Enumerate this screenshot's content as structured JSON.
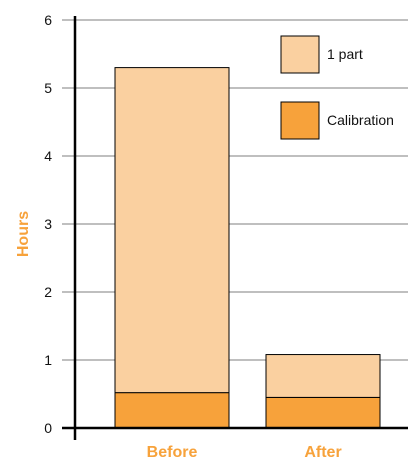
{
  "chart_data": {
    "type": "bar",
    "stacked": true,
    "categories": [
      "Before",
      "After"
    ],
    "series": [
      {
        "name": "Calibration",
        "values": [
          0.52,
          0.45
        ],
        "color": "#f7a23b"
      },
      {
        "name": "1 part",
        "values": [
          4.78,
          0.63
        ],
        "color": "#fad0a0"
      }
    ],
    "legend_order": [
      "1 part",
      "Calibration"
    ],
    "ylabel": "Hours",
    "xlabel": "",
    "ylim": [
      0,
      6
    ],
    "yticks": [
      0,
      1,
      2,
      3,
      4,
      5,
      6
    ],
    "grid": true,
    "legend_position": "top-right",
    "label_color": "#f7a23b",
    "grid_color": "#7f7f7f",
    "stroke_color": "#000000"
  }
}
